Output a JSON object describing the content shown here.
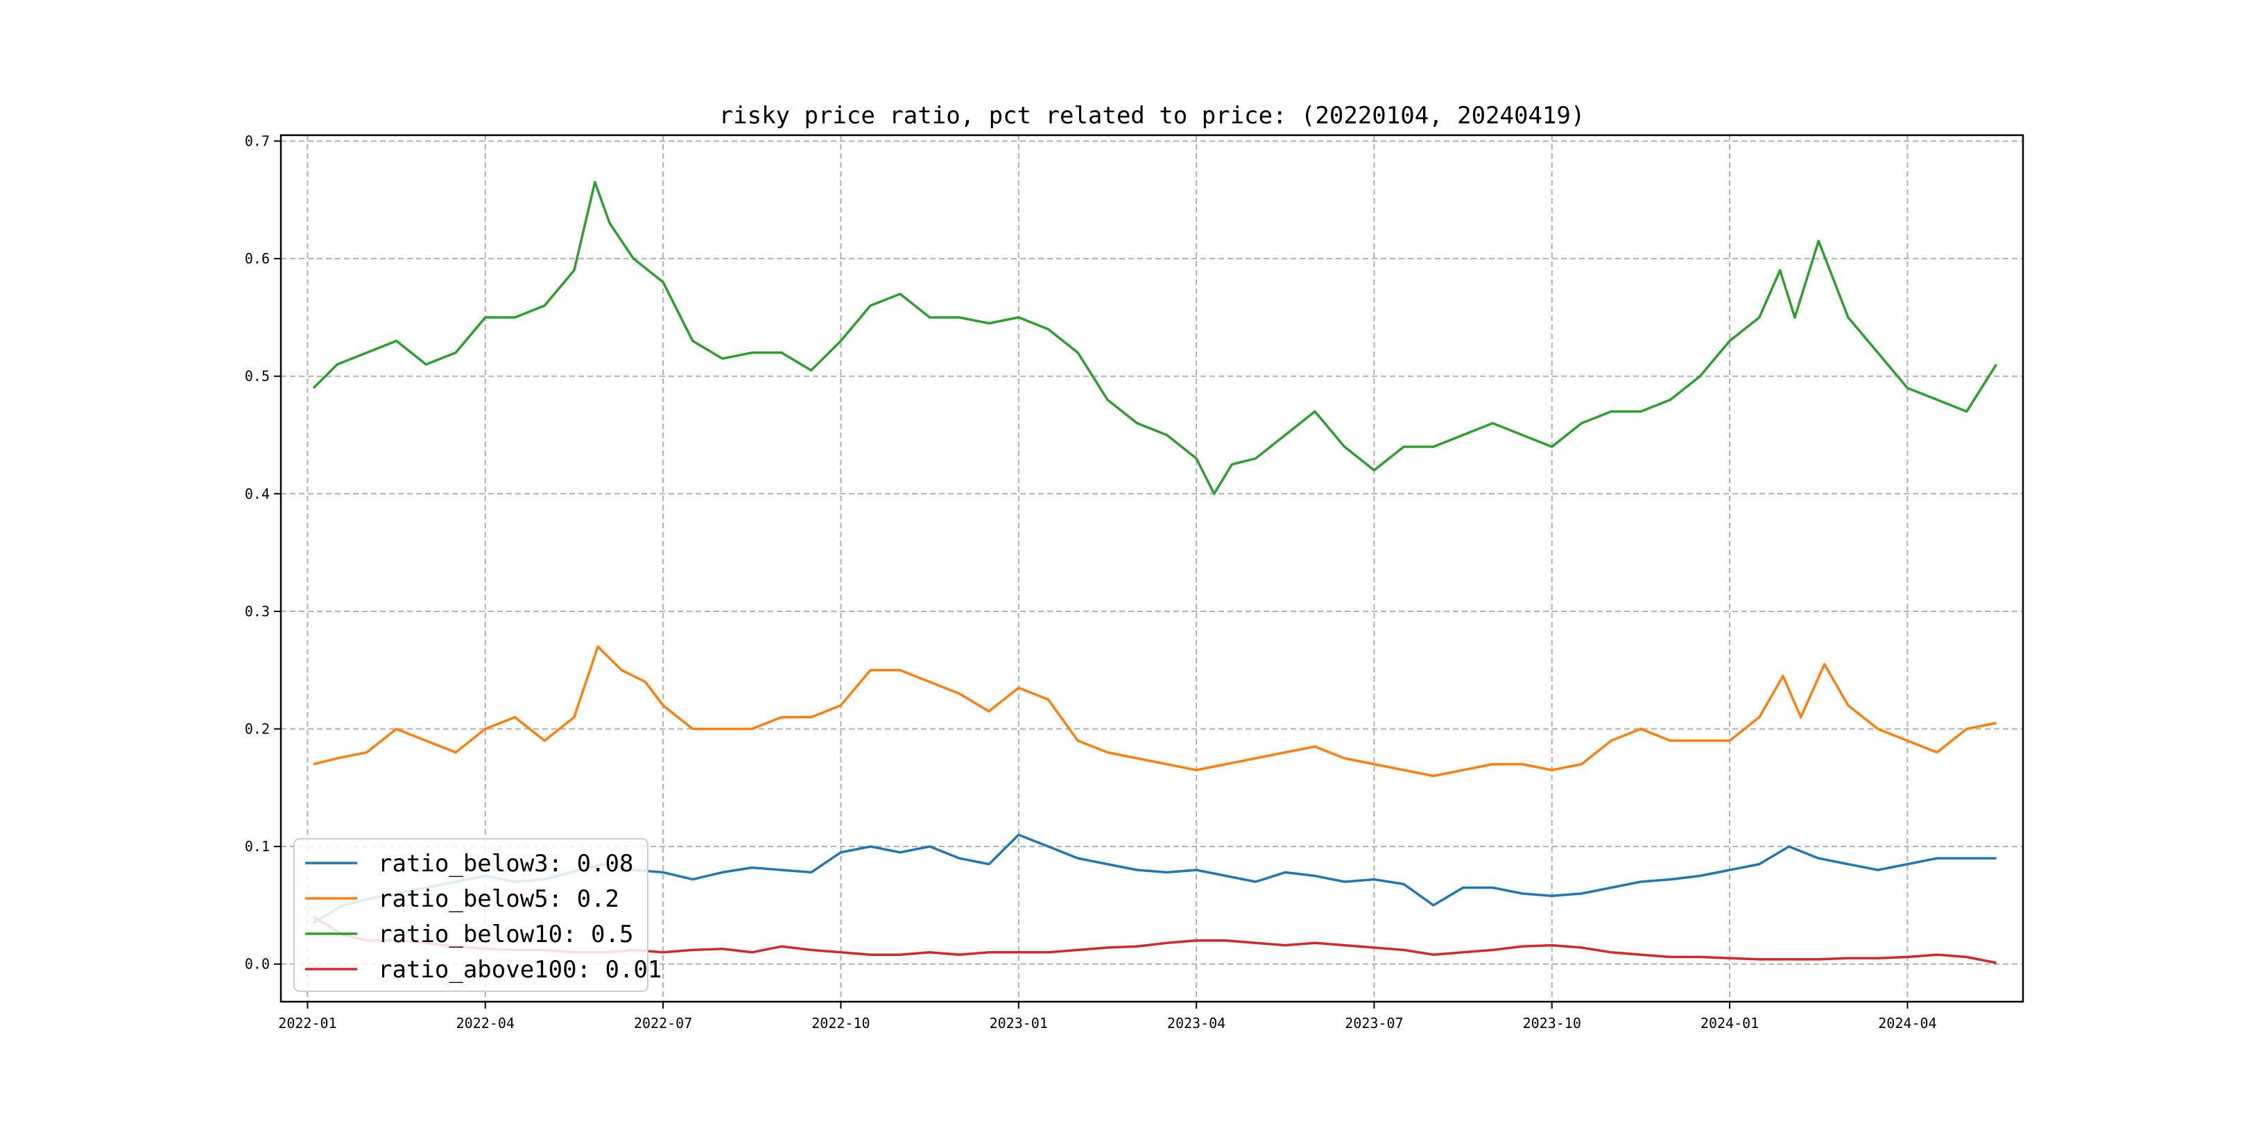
{
  "chart_data": {
    "type": "line",
    "title": "risky price ratio, pct related to price: (20220104, 20240419)",
    "xlabel": "",
    "ylabel": "",
    "grid": true,
    "legend_position": "lower-left",
    "x_range": [
      "2022-01-04",
      "2024-04-19"
    ],
    "xlim_months": [
      -0.45,
      28.95
    ],
    "ylim": [
      -0.032,
      0.705
    ],
    "x_ticks": [
      {
        "label": "2022-01",
        "m": 0
      },
      {
        "label": "2022-04",
        "m": 3
      },
      {
        "label": "2022-07",
        "m": 6
      },
      {
        "label": "2022-10",
        "m": 9
      },
      {
        "label": "2023-01",
        "m": 12
      },
      {
        "label": "2023-04",
        "m": 15
      },
      {
        "label": "2023-07",
        "m": 18
      },
      {
        "label": "2023-10",
        "m": 21
      },
      {
        "label": "2024-01",
        "m": 24
      },
      {
        "label": "2024-04",
        "m": 27
      }
    ],
    "y_ticks": [
      {
        "label": "0.0",
        "v": 0.0
      },
      {
        "label": "0.1",
        "v": 0.1
      },
      {
        "label": "0.2",
        "v": 0.2
      },
      {
        "label": "0.3",
        "v": 0.3
      },
      {
        "label": "0.4",
        "v": 0.4
      },
      {
        "label": "0.5",
        "v": 0.5
      },
      {
        "label": "0.6",
        "v": 0.6
      },
      {
        "label": "0.7",
        "v": 0.7
      }
    ],
    "series": [
      {
        "name": "ratio_below3",
        "legend_label": "ratio_below3: 0.08",
        "color": "#1f77b4",
        "points": [
          [
            0.1,
            0.035
          ],
          [
            0.6,
            0.05
          ],
          [
            1.0,
            0.055
          ],
          [
            1.5,
            0.06
          ],
          [
            2.0,
            0.065
          ],
          [
            2.5,
            0.07
          ],
          [
            3.0,
            0.075
          ],
          [
            3.5,
            0.07
          ],
          [
            4.0,
            0.072
          ],
          [
            4.6,
            0.08
          ],
          [
            5.0,
            0.085
          ],
          [
            5.5,
            0.08
          ],
          [
            6.0,
            0.078
          ],
          [
            6.5,
            0.072
          ],
          [
            7.0,
            0.078
          ],
          [
            7.5,
            0.082
          ],
          [
            8.0,
            0.08
          ],
          [
            8.5,
            0.078
          ],
          [
            9.0,
            0.095
          ],
          [
            9.5,
            0.1
          ],
          [
            10.0,
            0.095
          ],
          [
            10.5,
            0.1
          ],
          [
            11.0,
            0.09
          ],
          [
            11.5,
            0.085
          ],
          [
            12.0,
            0.11
          ],
          [
            12.5,
            0.1
          ],
          [
            13.0,
            0.09
          ],
          [
            13.5,
            0.085
          ],
          [
            14.0,
            0.08
          ],
          [
            14.5,
            0.078
          ],
          [
            15.0,
            0.08
          ],
          [
            15.5,
            0.075
          ],
          [
            16.0,
            0.07
          ],
          [
            16.5,
            0.078
          ],
          [
            17.0,
            0.075
          ],
          [
            17.5,
            0.07
          ],
          [
            18.0,
            0.072
          ],
          [
            18.5,
            0.068
          ],
          [
            19.0,
            0.05
          ],
          [
            19.5,
            0.065
          ],
          [
            20.0,
            0.065
          ],
          [
            20.5,
            0.06
          ],
          [
            21.0,
            0.058
          ],
          [
            21.5,
            0.06
          ],
          [
            22.0,
            0.065
          ],
          [
            22.5,
            0.07
          ],
          [
            23.0,
            0.072
          ],
          [
            23.5,
            0.075
          ],
          [
            24.0,
            0.08
          ],
          [
            24.5,
            0.085
          ],
          [
            25.0,
            0.1
          ],
          [
            25.5,
            0.09
          ],
          [
            26.0,
            0.085
          ],
          [
            26.5,
            0.08
          ],
          [
            27.0,
            0.085
          ],
          [
            27.5,
            0.09
          ],
          [
            28.0,
            0.09
          ],
          [
            28.5,
            0.09
          ]
        ]
      },
      {
        "name": "ratio_below5",
        "legend_label": "ratio_below5: 0.2",
        "color": "#ff7f0e",
        "points": [
          [
            0.1,
            0.17
          ],
          [
            0.5,
            0.175
          ],
          [
            1.0,
            0.18
          ],
          [
            1.5,
            0.2
          ],
          [
            2.0,
            0.19
          ],
          [
            2.5,
            0.18
          ],
          [
            3.0,
            0.2
          ],
          [
            3.5,
            0.21
          ],
          [
            4.0,
            0.19
          ],
          [
            4.5,
            0.21
          ],
          [
            4.9,
            0.27
          ],
          [
            5.3,
            0.25
          ],
          [
            5.7,
            0.24
          ],
          [
            6.0,
            0.22
          ],
          [
            6.5,
            0.2
          ],
          [
            7.0,
            0.2
          ],
          [
            7.5,
            0.2
          ],
          [
            8.0,
            0.21
          ],
          [
            8.5,
            0.21
          ],
          [
            9.0,
            0.22
          ],
          [
            9.5,
            0.25
          ],
          [
            10.0,
            0.25
          ],
          [
            10.5,
            0.24
          ],
          [
            11.0,
            0.23
          ],
          [
            11.5,
            0.215
          ],
          [
            12.0,
            0.235
          ],
          [
            12.5,
            0.225
          ],
          [
            13.0,
            0.19
          ],
          [
            13.5,
            0.18
          ],
          [
            14.0,
            0.175
          ],
          [
            14.5,
            0.17
          ],
          [
            15.0,
            0.165
          ],
          [
            15.5,
            0.17
          ],
          [
            16.0,
            0.175
          ],
          [
            16.5,
            0.18
          ],
          [
            17.0,
            0.185
          ],
          [
            17.5,
            0.175
          ],
          [
            18.0,
            0.17
          ],
          [
            18.5,
            0.165
          ],
          [
            19.0,
            0.16
          ],
          [
            19.5,
            0.165
          ],
          [
            20.0,
            0.17
          ],
          [
            20.5,
            0.17
          ],
          [
            21.0,
            0.165
          ],
          [
            21.5,
            0.17
          ],
          [
            22.0,
            0.19
          ],
          [
            22.5,
            0.2
          ],
          [
            23.0,
            0.19
          ],
          [
            23.5,
            0.19
          ],
          [
            24.0,
            0.19
          ],
          [
            24.5,
            0.21
          ],
          [
            24.9,
            0.245
          ],
          [
            25.2,
            0.21
          ],
          [
            25.6,
            0.255
          ],
          [
            26.0,
            0.22
          ],
          [
            26.5,
            0.2
          ],
          [
            27.0,
            0.19
          ],
          [
            27.5,
            0.18
          ],
          [
            28.0,
            0.2
          ],
          [
            28.5,
            0.205
          ]
        ]
      },
      {
        "name": "ratio_below10",
        "legend_label": "ratio_below10: 0.5",
        "color": "#2ca02c",
        "points": [
          [
            0.1,
            0.49
          ],
          [
            0.5,
            0.51
          ],
          [
            1.0,
            0.52
          ],
          [
            1.5,
            0.53
          ],
          [
            2.0,
            0.51
          ],
          [
            2.5,
            0.52
          ],
          [
            3.0,
            0.55
          ],
          [
            3.5,
            0.55
          ],
          [
            4.0,
            0.56
          ],
          [
            4.5,
            0.59
          ],
          [
            4.85,
            0.665
          ],
          [
            5.1,
            0.63
          ],
          [
            5.5,
            0.6
          ],
          [
            6.0,
            0.58
          ],
          [
            6.5,
            0.53
          ],
          [
            7.0,
            0.515
          ],
          [
            7.5,
            0.52
          ],
          [
            8.0,
            0.52
          ],
          [
            8.5,
            0.505
          ],
          [
            9.0,
            0.53
          ],
          [
            9.5,
            0.56
          ],
          [
            10.0,
            0.57
          ],
          [
            10.5,
            0.55
          ],
          [
            11.0,
            0.55
          ],
          [
            11.5,
            0.545
          ],
          [
            12.0,
            0.55
          ],
          [
            12.5,
            0.54
          ],
          [
            13.0,
            0.52
          ],
          [
            13.5,
            0.48
          ],
          [
            14.0,
            0.46
          ],
          [
            14.5,
            0.45
          ],
          [
            15.0,
            0.43
          ],
          [
            15.3,
            0.4
          ],
          [
            15.6,
            0.425
          ],
          [
            16.0,
            0.43
          ],
          [
            16.5,
            0.45
          ],
          [
            17.0,
            0.47
          ],
          [
            17.5,
            0.44
          ],
          [
            18.0,
            0.42
          ],
          [
            18.5,
            0.44
          ],
          [
            19.0,
            0.44
          ],
          [
            19.5,
            0.45
          ],
          [
            20.0,
            0.46
          ],
          [
            20.5,
            0.45
          ],
          [
            21.0,
            0.44
          ],
          [
            21.5,
            0.46
          ],
          [
            22.0,
            0.47
          ],
          [
            22.5,
            0.47
          ],
          [
            23.0,
            0.48
          ],
          [
            23.5,
            0.5
          ],
          [
            24.0,
            0.53
          ],
          [
            24.5,
            0.55
          ],
          [
            24.85,
            0.59
          ],
          [
            25.1,
            0.55
          ],
          [
            25.5,
            0.615
          ],
          [
            26.0,
            0.55
          ],
          [
            26.5,
            0.52
          ],
          [
            27.0,
            0.49
          ],
          [
            27.5,
            0.48
          ],
          [
            28.0,
            0.47
          ],
          [
            28.5,
            0.51
          ]
        ]
      },
      {
        "name": "ratio_above100",
        "legend_label": "ratio_above100: 0.01",
        "color": "#d62728",
        "points": [
          [
            0.1,
            0.04
          ],
          [
            0.6,
            0.025
          ],
          [
            1.0,
            0.02
          ],
          [
            1.5,
            0.02
          ],
          [
            2.0,
            0.018
          ],
          [
            2.5,
            0.015
          ],
          [
            3.0,
            0.013
          ],
          [
            3.5,
            0.012
          ],
          [
            4.0,
            0.012
          ],
          [
            4.5,
            0.01
          ],
          [
            5.0,
            0.01
          ],
          [
            5.5,
            0.012
          ],
          [
            6.0,
            0.01
          ],
          [
            6.5,
            0.012
          ],
          [
            7.0,
            0.013
          ],
          [
            7.5,
            0.01
          ],
          [
            8.0,
            0.015
          ],
          [
            8.5,
            0.012
          ],
          [
            9.0,
            0.01
          ],
          [
            9.5,
            0.008
          ],
          [
            10.0,
            0.008
          ],
          [
            10.5,
            0.01
          ],
          [
            11.0,
            0.008
          ],
          [
            11.5,
            0.01
          ],
          [
            12.0,
            0.01
          ],
          [
            12.5,
            0.01
          ],
          [
            13.0,
            0.012
          ],
          [
            13.5,
            0.014
          ],
          [
            14.0,
            0.015
          ],
          [
            14.5,
            0.018
          ],
          [
            15.0,
            0.02
          ],
          [
            15.5,
            0.02
          ],
          [
            16.0,
            0.018
          ],
          [
            16.5,
            0.016
          ],
          [
            17.0,
            0.018
          ],
          [
            17.5,
            0.016
          ],
          [
            18.0,
            0.014
          ],
          [
            18.5,
            0.012
          ],
          [
            19.0,
            0.008
          ],
          [
            19.5,
            0.01
          ],
          [
            20.0,
            0.012
          ],
          [
            20.5,
            0.015
          ],
          [
            21.0,
            0.016
          ],
          [
            21.5,
            0.014
          ],
          [
            22.0,
            0.01
          ],
          [
            22.5,
            0.008
          ],
          [
            23.0,
            0.006
          ],
          [
            23.5,
            0.006
          ],
          [
            24.0,
            0.005
          ],
          [
            24.5,
            0.004
          ],
          [
            25.0,
            0.004
          ],
          [
            25.5,
            0.004
          ],
          [
            26.0,
            0.005
          ],
          [
            26.5,
            0.005
          ],
          [
            27.0,
            0.006
          ],
          [
            27.5,
            0.008
          ],
          [
            28.0,
            0.006
          ],
          [
            28.5,
            0.001
          ]
        ]
      }
    ]
  }
}
